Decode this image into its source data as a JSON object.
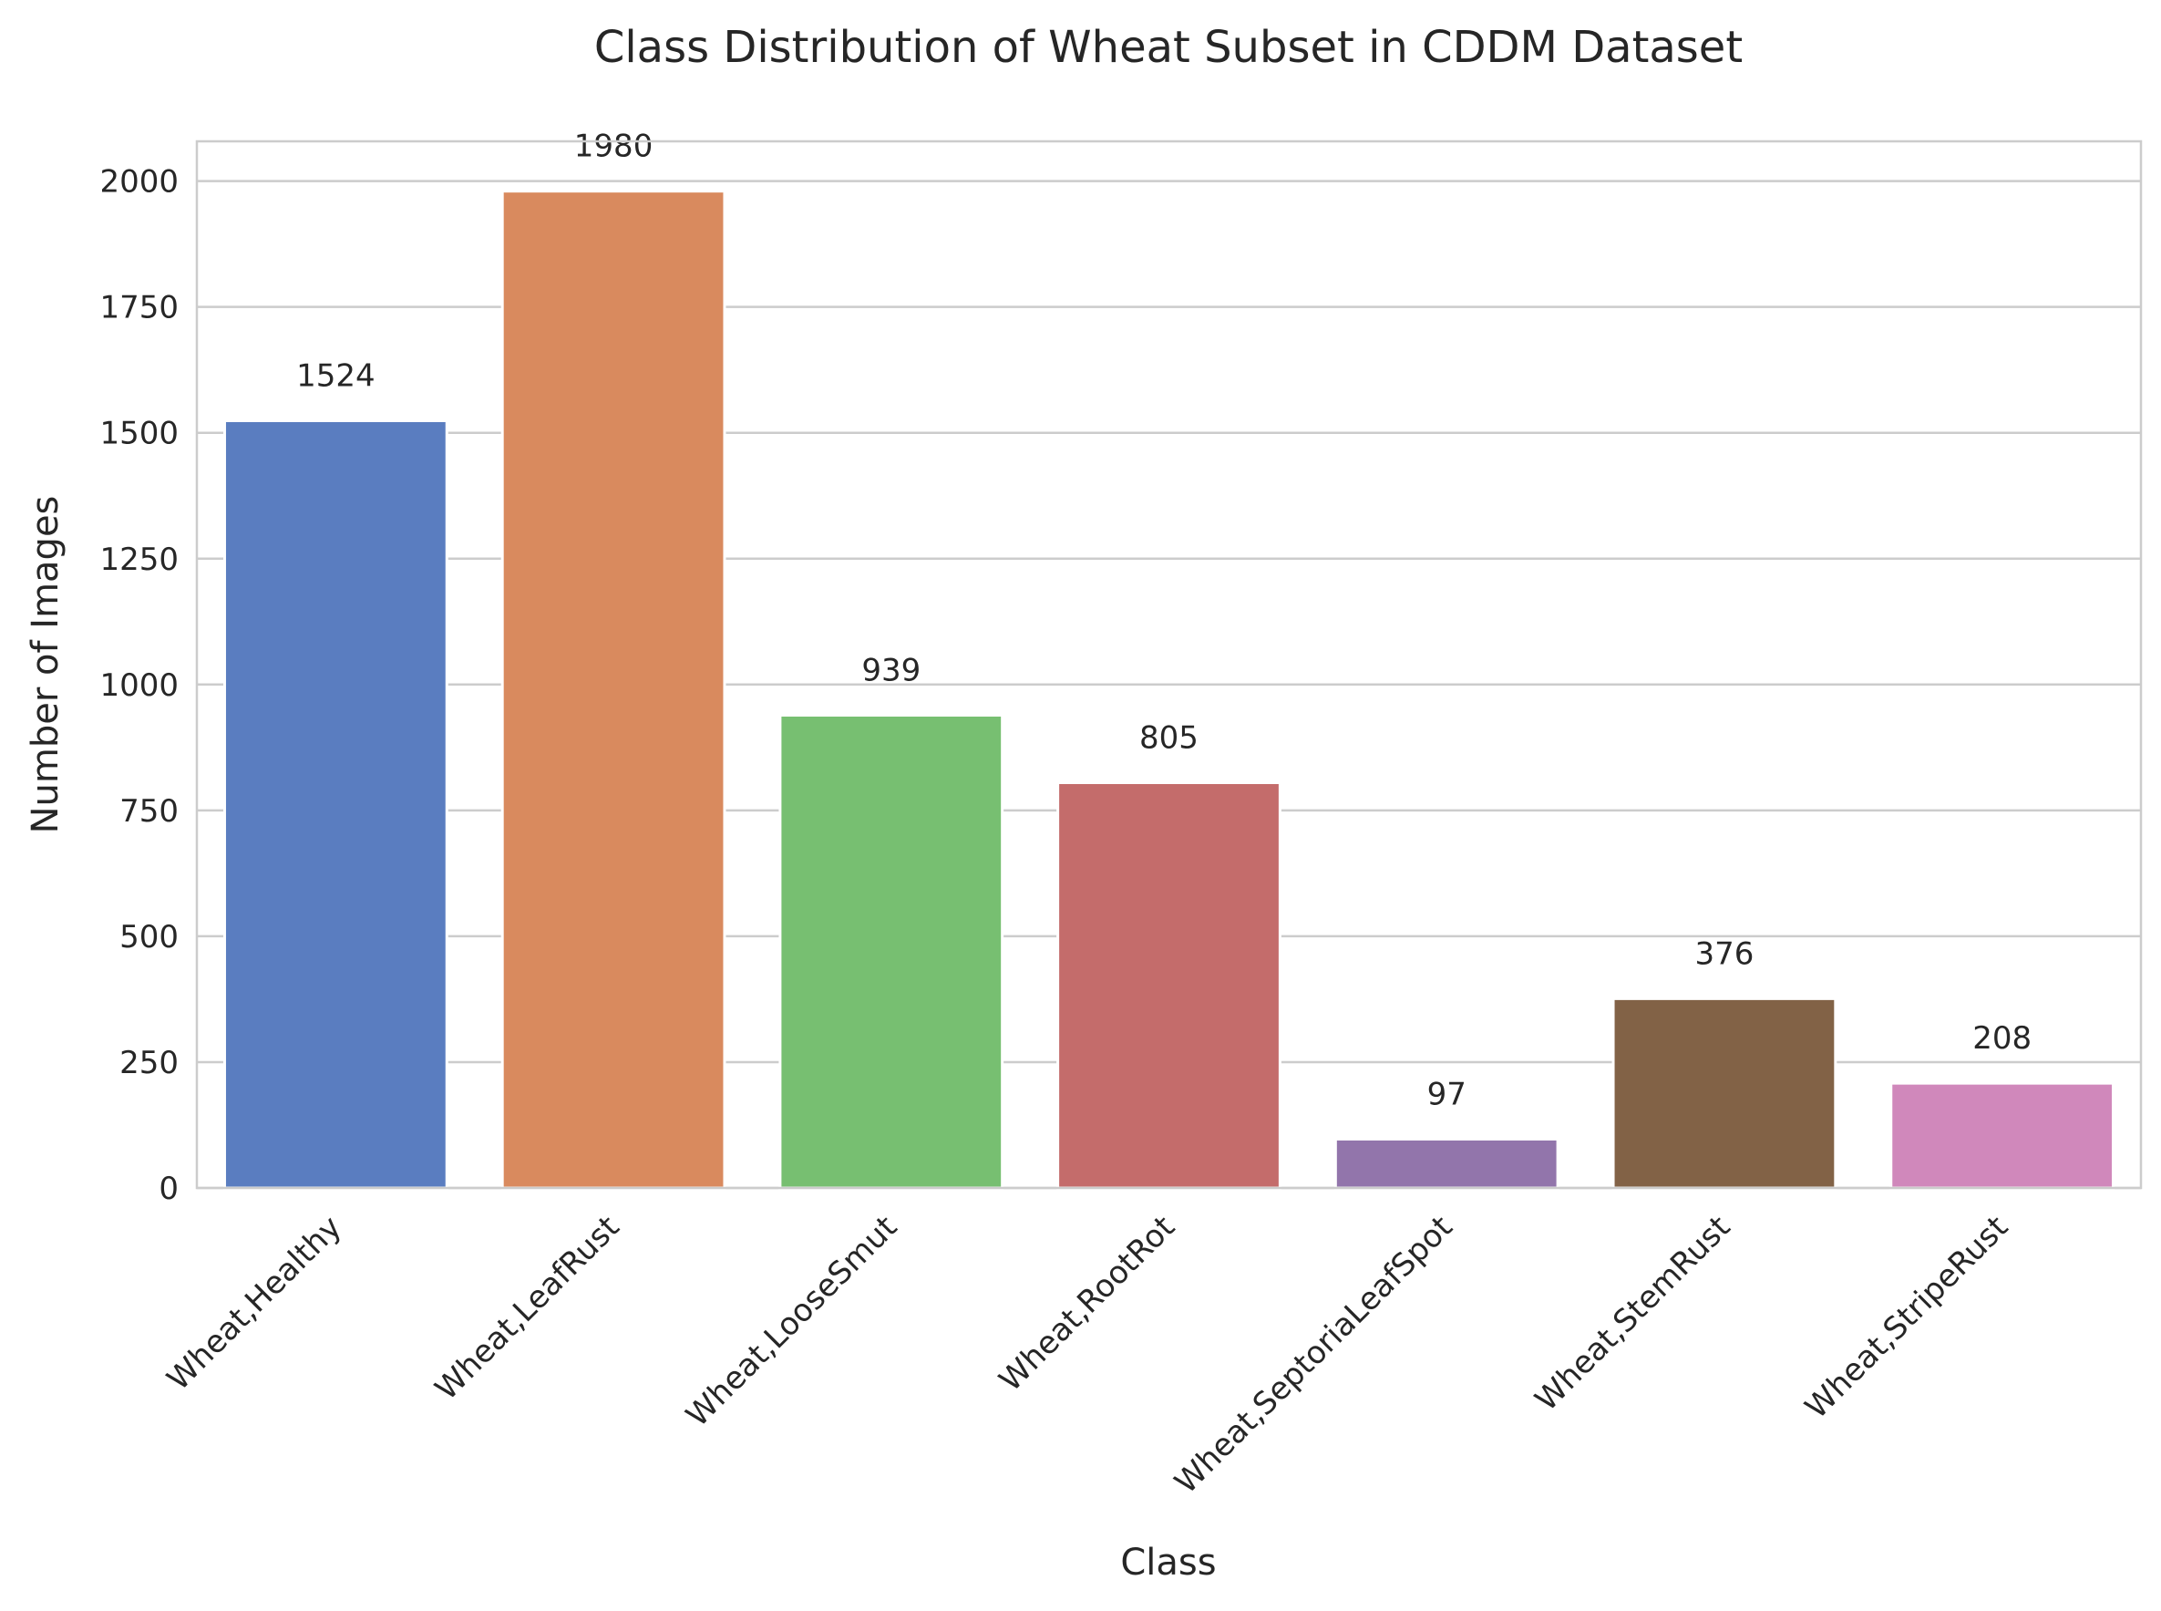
{
  "chart_data": {
    "type": "bar",
    "title": "Class Distribution of Wheat Subset in CDDM Dataset",
    "xlabel": "Class",
    "ylabel": "Number of Images",
    "categories": [
      "Wheat,Healthy",
      "Wheat,LeafRust",
      "Wheat,LooseSmut",
      "Wheat,RootRot",
      "Wheat,SeptoriaLeafSpot",
      "Wheat,StemRust",
      "Wheat,StripeRust"
    ],
    "values": [
      1524,
      1980,
      939,
      805,
      97,
      376,
      208
    ],
    "data_labels": [
      "1524",
      "1980",
      "939",
      "805",
      "97",
      "376",
      "208"
    ],
    "colors": [
      "#5a7dc0",
      "#d98a5e",
      "#77bf71",
      "#c46c6b",
      "#9275ab",
      "#826246",
      "#d088bb"
    ],
    "ylim": [
      0,
      2079
    ],
    "yticks": [
      0,
      250,
      500,
      750,
      1000,
      1250,
      1500,
      1750,
      2000
    ],
    "ytick_labels": [
      "0",
      "250",
      "500",
      "750",
      "1000",
      "1250",
      "1500",
      "1750",
      "2000"
    ],
    "grid": true,
    "grid_axis": "y",
    "legend": "none"
  }
}
